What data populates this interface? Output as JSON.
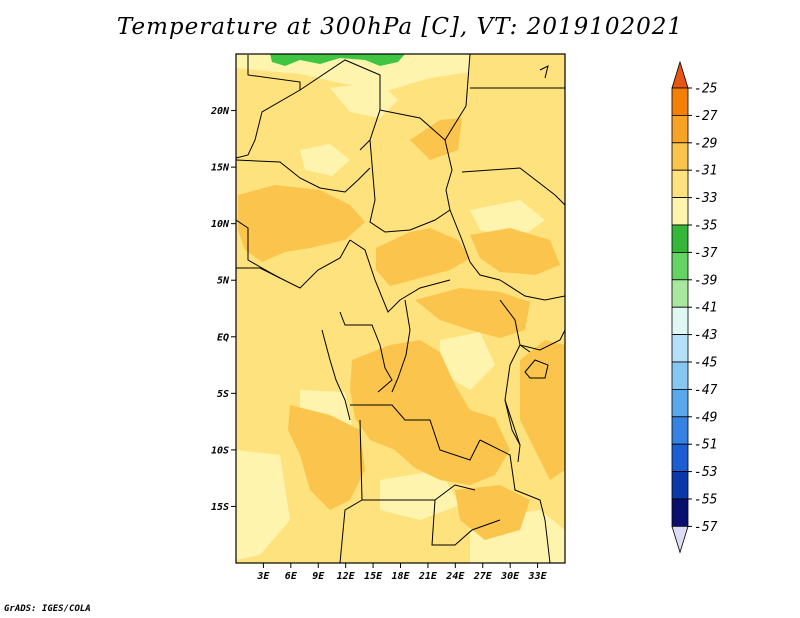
{
  "title": "Temperature at 300hPa [C], VT: 2019102021",
  "credit": "GrADS: IGES/COLA",
  "map": {
    "lon_range": [
      0,
      36
    ],
    "lat_range": [
      -20,
      25
    ],
    "lon_ticks": [
      {
        "value": 3,
        "label": "3E"
      },
      {
        "value": 6,
        "label": "6E"
      },
      {
        "value": 9,
        "label": "9E"
      },
      {
        "value": 12,
        "label": "12E"
      },
      {
        "value": 15,
        "label": "15E"
      },
      {
        "value": 18,
        "label": "18E"
      },
      {
        "value": 21,
        "label": "21E"
      },
      {
        "value": 24,
        "label": "24E"
      },
      {
        "value": 27,
        "label": "27E"
      },
      {
        "value": 30,
        "label": "30E"
      },
      {
        "value": 33,
        "label": "33E"
      }
    ],
    "lat_ticks": [
      {
        "value": 20,
        "label": "20N"
      },
      {
        "value": 15,
        "label": "15N"
      },
      {
        "value": 10,
        "label": "10N"
      },
      {
        "value": 5,
        "label": "5N"
      },
      {
        "value": 0,
        "label": "EQ"
      },
      {
        "value": -5,
        "label": "5S"
      },
      {
        "value": -10,
        "label": "10S"
      },
      {
        "value": -15,
        "label": "15S"
      }
    ],
    "base_color": "#fde27d",
    "warm_color": "#fbc44c",
    "cool_color": "#fef4ae",
    "green_color": "#3fc542"
  },
  "colorbar": {
    "labels": [
      "-25",
      "-27",
      "-29",
      "-31",
      "-33",
      "-35",
      "-37",
      "-39",
      "-41",
      "-43",
      "-45",
      "-47",
      "-49",
      "-51",
      "-53",
      "-55",
      "-57"
    ],
    "colors": [
      "#e85414",
      "#f47f05",
      "#f8a326",
      "#fbc44c",
      "#fde27d",
      "#fef4ae",
      "#34b739",
      "#66d464",
      "#a8e89e",
      "#e0f7f3",
      "#b4e0f8",
      "#88c6f2",
      "#5aa8ec",
      "#3682e2",
      "#1c5ed2",
      "#0a3aaa",
      "#0a0f6e",
      "#dcdcf5"
    ]
  }
}
